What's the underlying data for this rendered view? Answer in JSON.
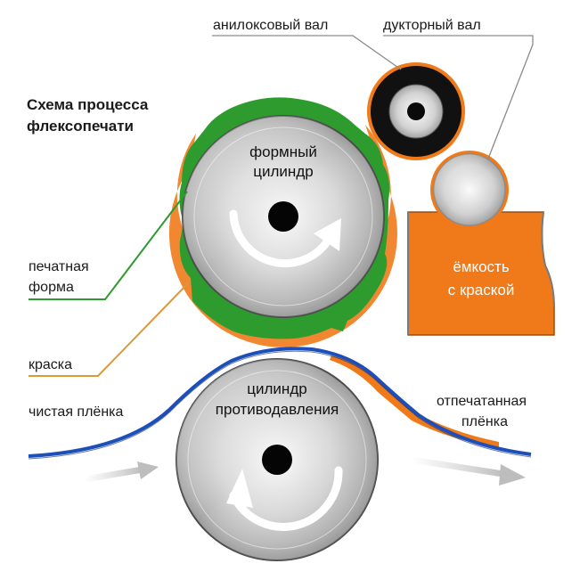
{
  "title": {
    "line1": "Схема процесса",
    "line2": "флексопечати"
  },
  "labels": {
    "anilox_roller": "анилоксовый вал",
    "fountain_roller": "дукторный вал",
    "plate_cylinder_line1": "формный",
    "plate_cylinder_line2": "цилиндр",
    "printing_plate_line1": "печатная",
    "printing_plate_line2": "форма",
    "ink_tank_line1": "ёмкость",
    "ink_tank_line2": "с краской",
    "ink": "краска",
    "impression_cylinder_line1": "цилиндр",
    "impression_cylinder_line2": "противодавления",
    "clean_film": "чистая плёнка",
    "printed_film_line1": "отпечатанная",
    "printed_film_line2": "плёнка"
  },
  "colors": {
    "plate_green": "#2e9b2e",
    "ink_orange": "#f07a1a",
    "film_blue": "#1d4fb8",
    "anilox_black": "#111111",
    "leader_gray": "#8a8a8a"
  },
  "icons": {
    "plate_rotation": "curved-arrow-clockwise-icon",
    "impression_rotation": "curved-arrow-counterclockwise-icon",
    "film_direction": "arrow-right-icon"
  }
}
